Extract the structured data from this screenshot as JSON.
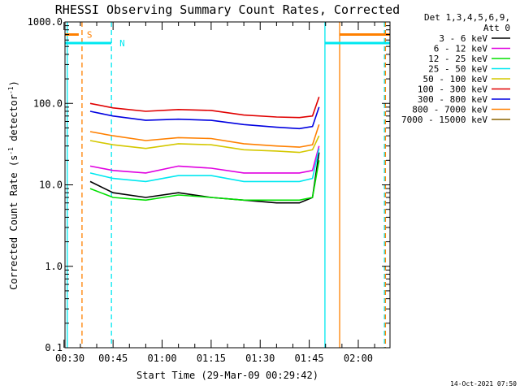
{
  "chart_data": {
    "type": "line",
    "title": "RHESSI Observing Summary Count Rates, Corrected",
    "xlabel": "Start Time (29-Mar-09 00:29:42)",
    "ylabel_main": "Corrected Count Rate (s",
    "ylabel_sup1": "-1",
    "ylabel_mid": " detector",
    "ylabel_sup2": "-1",
    "ylabel_end": ")",
    "y_scale": "log",
    "ylim": [
      0.1,
      1000
    ],
    "xlim_minutes": [
      30.3,
      129.7
    ],
    "x_ticks": [
      {
        "minute": 30,
        "label": "00:30"
      },
      {
        "minute": 45,
        "label": "00:45"
      },
      {
        "minute": 60,
        "label": "01:00"
      },
      {
        "minute": 75,
        "label": "01:15"
      },
      {
        "minute": 90,
        "label": "01:30"
      },
      {
        "minute": 105,
        "label": "01:45"
      },
      {
        "minute": 120,
        "label": "02:00"
      }
    ],
    "y_ticks": [
      {
        "value": 0.1,
        "label": "0.1"
      },
      {
        "value": 1,
        "label": "1.0"
      },
      {
        "value": 10,
        "label": "10.0"
      },
      {
        "value": 100,
        "label": "100.0"
      },
      {
        "value": 1000,
        "label": "1000.0"
      }
    ],
    "legend": {
      "header_line1": "Det 1,3,4,5,6,9,",
      "header_line2": "Att 0",
      "placement": "right"
    },
    "series": [
      {
        "name": "3 - 6 keV",
        "color": "#000000",
        "x": [
          38,
          45,
          55,
          65,
          75,
          85,
          95,
          102,
          106,
          108
        ],
        "values": [
          11,
          8,
          7,
          8,
          7,
          6.5,
          6,
          6,
          7,
          25
        ]
      },
      {
        "name": "6 - 12 keV",
        "color": "#e000e0",
        "x": [
          38,
          45,
          55,
          65,
          75,
          85,
          95,
          102,
          106,
          108
        ],
        "values": [
          17,
          15,
          14,
          17,
          16,
          14,
          14,
          14,
          15,
          30
        ]
      },
      {
        "name": "12 - 25 keV",
        "color": "#00e000",
        "x": [
          38,
          45,
          55,
          65,
          75,
          85,
          95,
          102,
          106,
          108
        ],
        "values": [
          9,
          7,
          6.5,
          7.5,
          7,
          6.5,
          6.5,
          6.5,
          7,
          20
        ]
      },
      {
        "name": "25 - 50 keV",
        "color": "#00e8f0",
        "x": [
          38,
          45,
          55,
          65,
          75,
          85,
          95,
          102,
          106,
          108
        ],
        "values": [
          14,
          12,
          11,
          13,
          13,
          11,
          11,
          11,
          12,
          28
        ]
      },
      {
        "name": "50 - 100 keV",
        "color": "#d4c800",
        "x": [
          38,
          45,
          55,
          65,
          75,
          85,
          95,
          102,
          106,
          108
        ],
        "values": [
          35,
          31,
          28,
          32,
          31,
          27,
          26,
          25,
          27,
          40
        ]
      },
      {
        "name": "100 - 300 keV",
        "color": "#e00000",
        "x": [
          38,
          45,
          55,
          65,
          75,
          85,
          95,
          102,
          106,
          108
        ],
        "values": [
          100,
          88,
          80,
          84,
          82,
          72,
          68,
          67,
          70,
          120
        ]
      },
      {
        "name": "300 - 800 keV",
        "color": "#0000e0",
        "x": [
          38,
          45,
          55,
          65,
          75,
          85,
          95,
          102,
          106,
          108
        ],
        "values": [
          80,
          70,
          62,
          64,
          62,
          55,
          51,
          49,
          52,
          90
        ]
      },
      {
        "name": "800 - 7000 keV",
        "color": "#ff8000",
        "x": [
          38,
          45,
          55,
          65,
          75,
          85,
          95,
          102,
          106,
          108
        ],
        "values": [
          45,
          40,
          35,
          38,
          37,
          32,
          30,
          29,
          31,
          55
        ]
      },
      {
        "name": "7000 - 15000 keV",
        "color": "#8c6400",
        "x": [],
        "values": []
      }
    ],
    "flag_lines": [
      {
        "label": "S",
        "color": "#ff8000",
        "segments_minutes": [
          [
            30.3,
            34.5
          ],
          [
            114.3,
            129.7
          ]
        ],
        "level": 700
      },
      {
        "label": "N",
        "color": "#00e8f0",
        "segments_minutes": [
          [
            30.3,
            44.5
          ],
          [
            109.8,
            129.7
          ]
        ],
        "level": 550
      }
    ],
    "vlines": [
      {
        "minute": 31,
        "color": "#00e8f0",
        "style": "solid"
      },
      {
        "minute": 35.5,
        "color": "#ff8000",
        "style": "dashed"
      },
      {
        "minute": 44.5,
        "color": "#00e8f0",
        "style": "dashed"
      },
      {
        "minute": 109.8,
        "color": "#00e8f0",
        "style": "solid"
      },
      {
        "minute": 114.3,
        "color": "#ff8000",
        "style": "solid"
      },
      {
        "minute": 128,
        "color": "#00e8f0",
        "style": "dashed"
      },
      {
        "minute": 128.3,
        "color": "#ff8000",
        "style": "dashed"
      }
    ]
  },
  "footer": {
    "date_stamp": "14-Oct-2021 07:50"
  }
}
